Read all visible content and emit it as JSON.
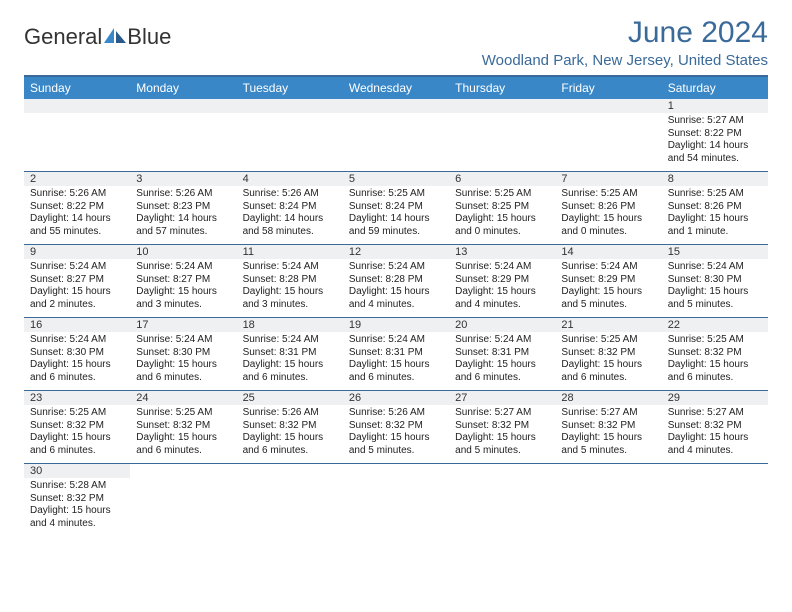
{
  "logo": {
    "text_a": "General",
    "text_b": "Blue"
  },
  "title": "June 2024",
  "subtitle": "Woodland Park, New Jersey, United States",
  "colors": {
    "accent": "#3a6a9a",
    "header_bg": "#3a87c7",
    "daynum_bg": "#eef0f2",
    "text": "#222222"
  },
  "day_names": [
    "Sunday",
    "Monday",
    "Tuesday",
    "Wednesday",
    "Thursday",
    "Friday",
    "Saturday"
  ],
  "days": {
    "1": {
      "sunrise": "5:27 AM",
      "sunset": "8:22 PM",
      "daylight": "14 hours and 54 minutes."
    },
    "2": {
      "sunrise": "5:26 AM",
      "sunset": "8:22 PM",
      "daylight": "14 hours and 55 minutes."
    },
    "3": {
      "sunrise": "5:26 AM",
      "sunset": "8:23 PM",
      "daylight": "14 hours and 57 minutes."
    },
    "4": {
      "sunrise": "5:26 AM",
      "sunset": "8:24 PM",
      "daylight": "14 hours and 58 minutes."
    },
    "5": {
      "sunrise": "5:25 AM",
      "sunset": "8:24 PM",
      "daylight": "14 hours and 59 minutes."
    },
    "6": {
      "sunrise": "5:25 AM",
      "sunset": "8:25 PM",
      "daylight": "15 hours and 0 minutes."
    },
    "7": {
      "sunrise": "5:25 AM",
      "sunset": "8:26 PM",
      "daylight": "15 hours and 0 minutes."
    },
    "8": {
      "sunrise": "5:25 AM",
      "sunset": "8:26 PM",
      "daylight": "15 hours and 1 minute."
    },
    "9": {
      "sunrise": "5:24 AM",
      "sunset": "8:27 PM",
      "daylight": "15 hours and 2 minutes."
    },
    "10": {
      "sunrise": "5:24 AM",
      "sunset": "8:27 PM",
      "daylight": "15 hours and 3 minutes."
    },
    "11": {
      "sunrise": "5:24 AM",
      "sunset": "8:28 PM",
      "daylight": "15 hours and 3 minutes."
    },
    "12": {
      "sunrise": "5:24 AM",
      "sunset": "8:28 PM",
      "daylight": "15 hours and 4 minutes."
    },
    "13": {
      "sunrise": "5:24 AM",
      "sunset": "8:29 PM",
      "daylight": "15 hours and 4 minutes."
    },
    "14": {
      "sunrise": "5:24 AM",
      "sunset": "8:29 PM",
      "daylight": "15 hours and 5 minutes."
    },
    "15": {
      "sunrise": "5:24 AM",
      "sunset": "8:30 PM",
      "daylight": "15 hours and 5 minutes."
    },
    "16": {
      "sunrise": "5:24 AM",
      "sunset": "8:30 PM",
      "daylight": "15 hours and 6 minutes."
    },
    "17": {
      "sunrise": "5:24 AM",
      "sunset": "8:30 PM",
      "daylight": "15 hours and 6 minutes."
    },
    "18": {
      "sunrise": "5:24 AM",
      "sunset": "8:31 PM",
      "daylight": "15 hours and 6 minutes."
    },
    "19": {
      "sunrise": "5:24 AM",
      "sunset": "8:31 PM",
      "daylight": "15 hours and 6 minutes."
    },
    "20": {
      "sunrise": "5:24 AM",
      "sunset": "8:31 PM",
      "daylight": "15 hours and 6 minutes."
    },
    "21": {
      "sunrise": "5:25 AM",
      "sunset": "8:32 PM",
      "daylight": "15 hours and 6 minutes."
    },
    "22": {
      "sunrise": "5:25 AM",
      "sunset": "8:32 PM",
      "daylight": "15 hours and 6 minutes."
    },
    "23": {
      "sunrise": "5:25 AM",
      "sunset": "8:32 PM",
      "daylight": "15 hours and 6 minutes."
    },
    "24": {
      "sunrise": "5:25 AM",
      "sunset": "8:32 PM",
      "daylight": "15 hours and 6 minutes."
    },
    "25": {
      "sunrise": "5:26 AM",
      "sunset": "8:32 PM",
      "daylight": "15 hours and 6 minutes."
    },
    "26": {
      "sunrise": "5:26 AM",
      "sunset": "8:32 PM",
      "daylight": "15 hours and 5 minutes."
    },
    "27": {
      "sunrise": "5:27 AM",
      "sunset": "8:32 PM",
      "daylight": "15 hours and 5 minutes."
    },
    "28": {
      "sunrise": "5:27 AM",
      "sunset": "8:32 PM",
      "daylight": "15 hours and 5 minutes."
    },
    "29": {
      "sunrise": "5:27 AM",
      "sunset": "8:32 PM",
      "daylight": "15 hours and 4 minutes."
    },
    "30": {
      "sunrise": "5:28 AM",
      "sunset": "8:32 PM",
      "daylight": "15 hours and 4 minutes."
    }
  },
  "labels": {
    "sunrise": "Sunrise: ",
    "sunset": "Sunset: ",
    "daylight": "Daylight: "
  },
  "weeks": [
    [
      null,
      null,
      null,
      null,
      null,
      null,
      "1"
    ],
    [
      "2",
      "3",
      "4",
      "5",
      "6",
      "7",
      "8"
    ],
    [
      "9",
      "10",
      "11",
      "12",
      "13",
      "14",
      "15"
    ],
    [
      "16",
      "17",
      "18",
      "19",
      "20",
      "21",
      "22"
    ],
    [
      "23",
      "24",
      "25",
      "26",
      "27",
      "28",
      "29"
    ],
    [
      "30",
      null,
      null,
      null,
      null,
      null,
      null
    ]
  ]
}
